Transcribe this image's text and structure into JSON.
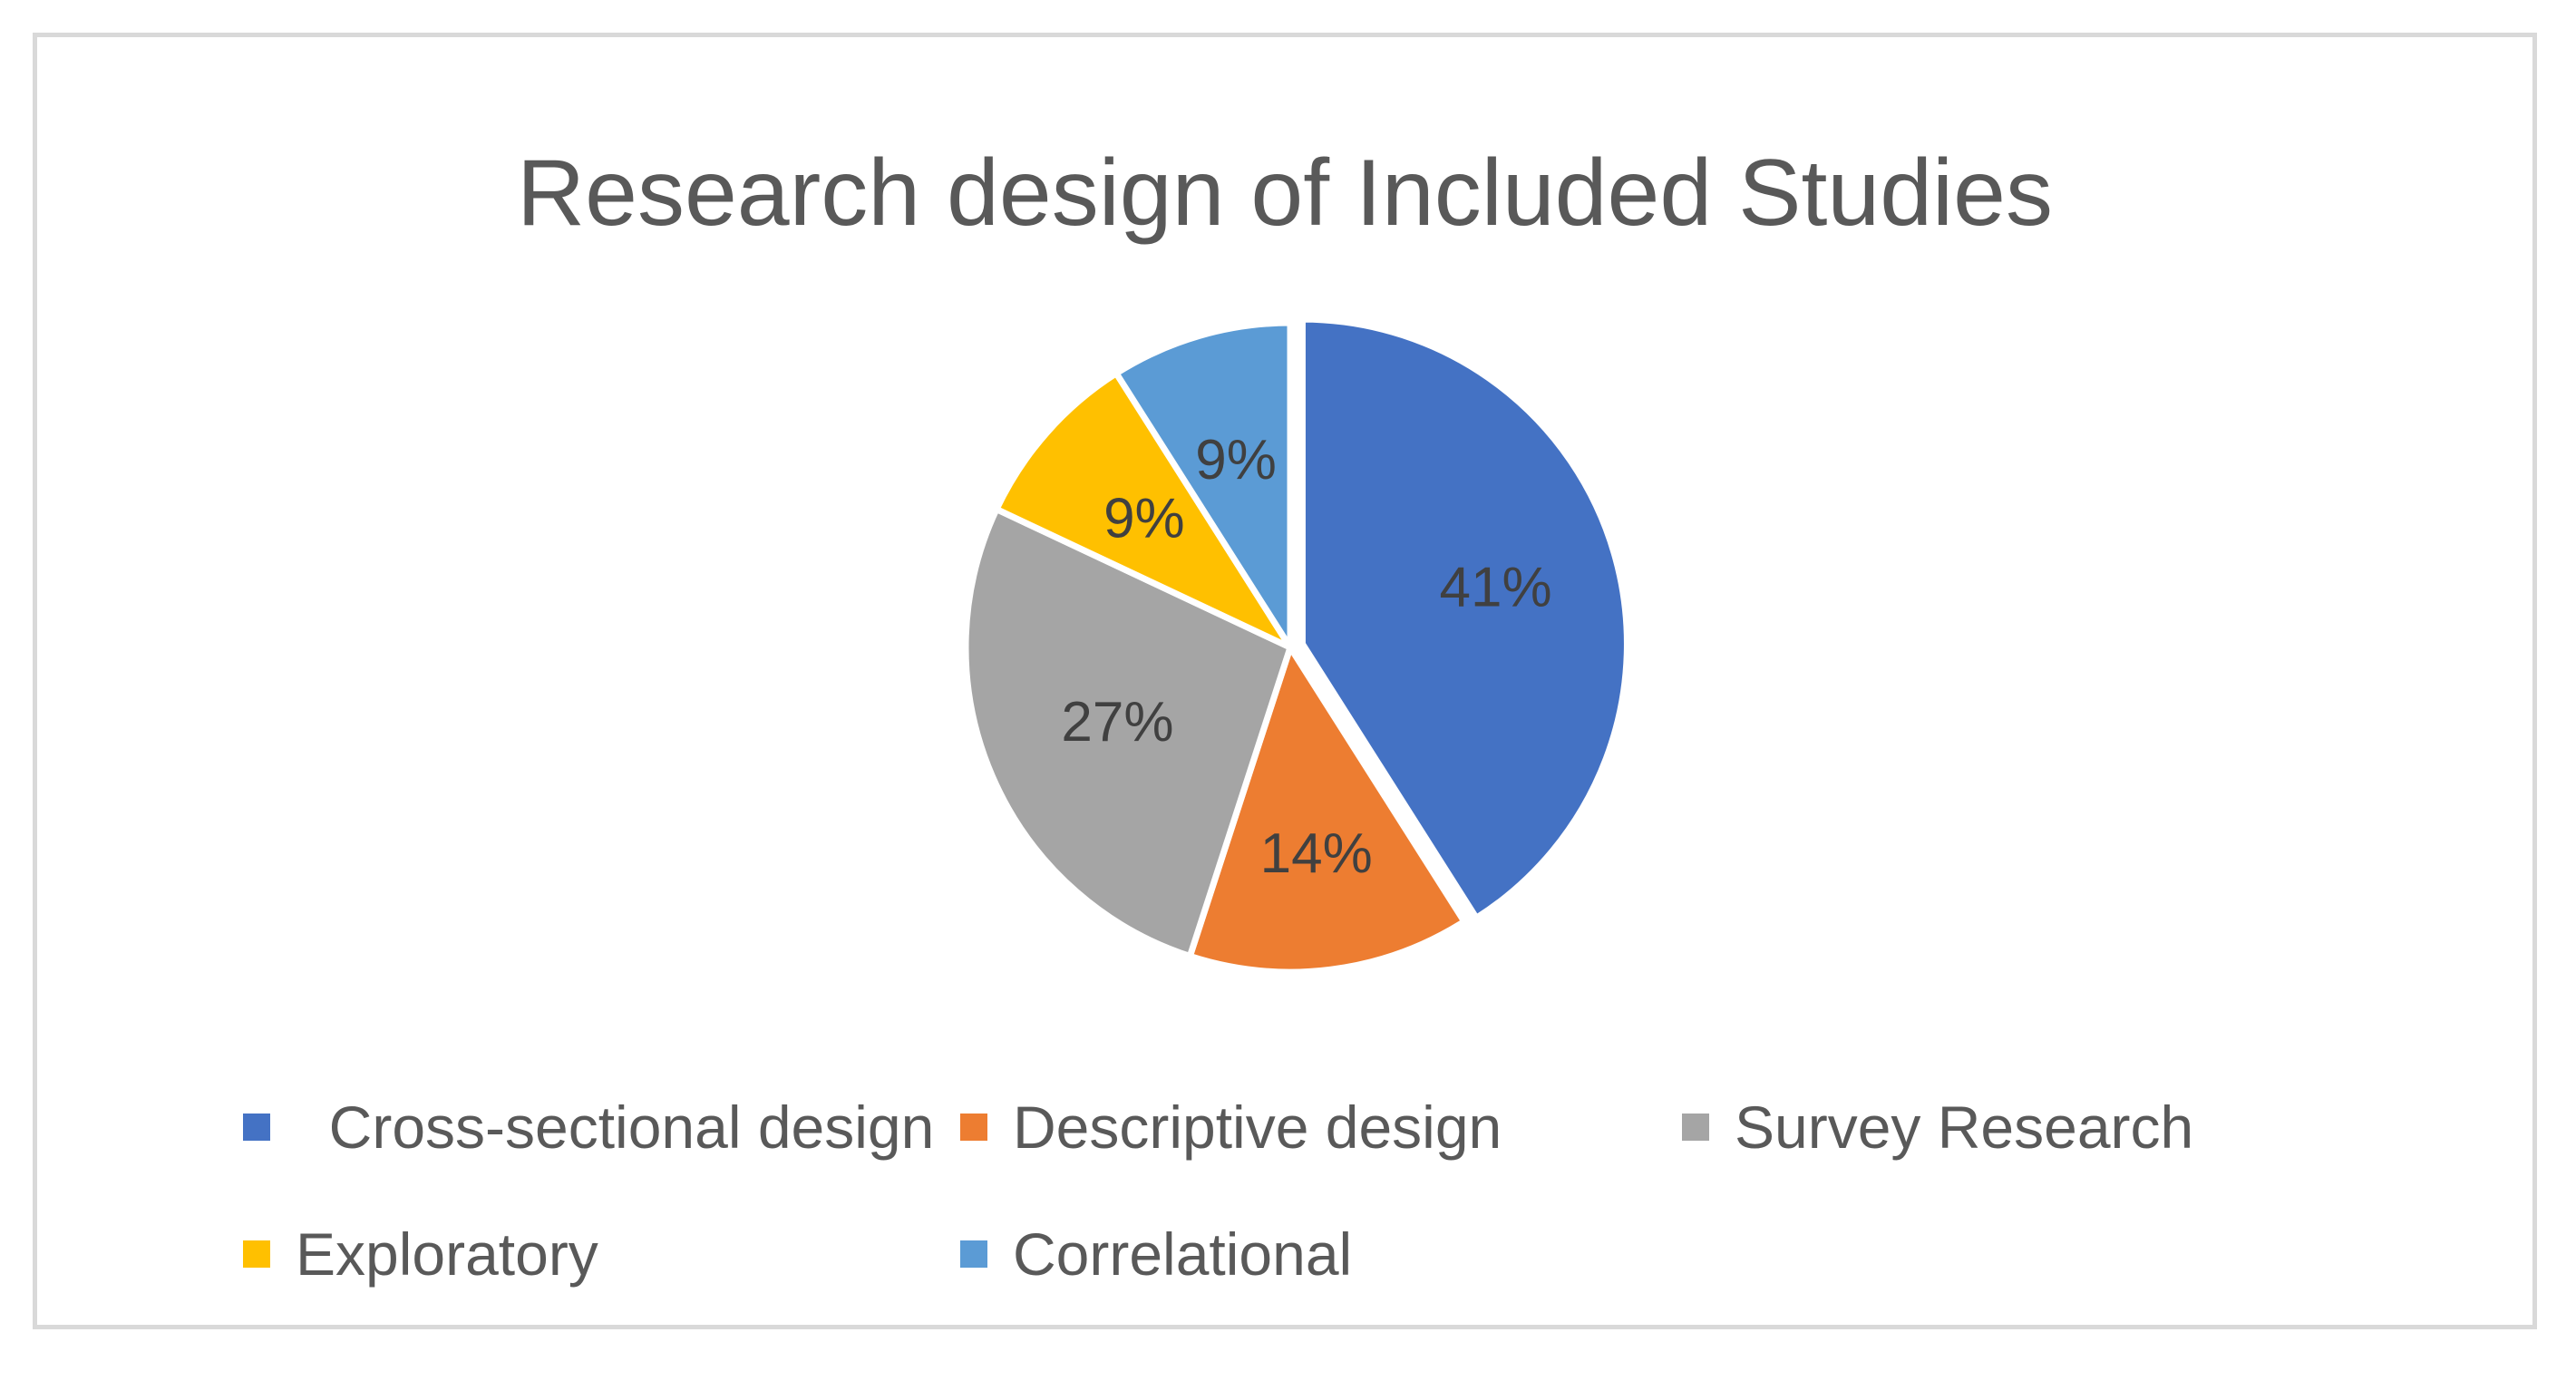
{
  "chart_data": {
    "type": "pie",
    "title": "Research design of Included Studies",
    "categories": [
      "Cross-sectional design",
      "Descriptive design",
      "Survey Research",
      "Exploratory",
      "Correlational"
    ],
    "values": [
      41,
      14,
      27,
      9,
      9
    ],
    "data_labels": [
      "41%",
      "14%",
      "27%",
      "9%",
      "9%"
    ],
    "colors": [
      "#4472c4",
      "#ed7d31",
      "#a5a5a5",
      "#ffc000",
      "#5b9bd5"
    ],
    "legend_position": "bottom",
    "legend_labels": [
      "  Cross-sectional design",
      "Descriptive design",
      "Survey Research",
      "Exploratory",
      "Correlational"
    ]
  }
}
